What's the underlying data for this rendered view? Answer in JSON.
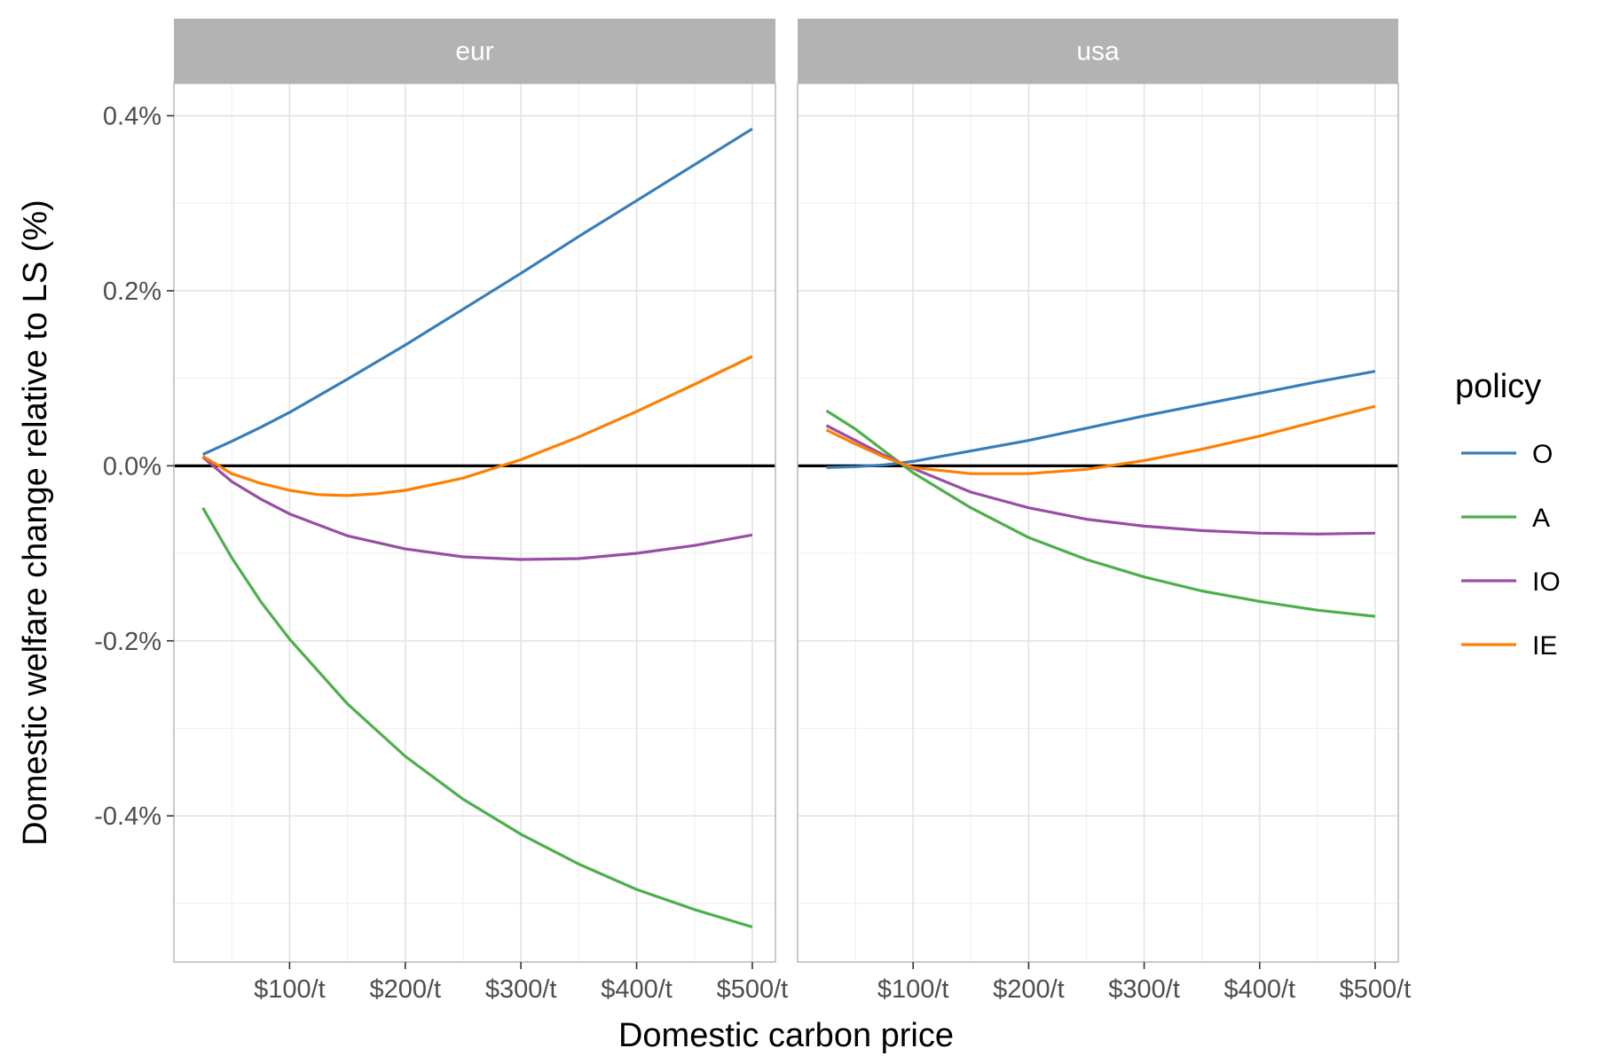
{
  "chart_data": {
    "type": "line",
    "xlabel": "Domestic carbon price",
    "ylabel": "Domestic welfare change relative to LS (%)",
    "x_ticks": [
      {
        "value": 100,
        "label": "$100/t"
      },
      {
        "value": 200,
        "label": "$200/t"
      },
      {
        "value": 300,
        "label": "$300/t"
      },
      {
        "value": 400,
        "label": "$400/t"
      },
      {
        "value": 500,
        "label": "$500/t"
      }
    ],
    "y_ticks": [
      {
        "value": 0.4,
        "label": "0.4%"
      },
      {
        "value": 0.2,
        "label": "0.2%"
      },
      {
        "value": 0.0,
        "label": "0.0%"
      },
      {
        "value": -0.2,
        "label": "-0.2%"
      },
      {
        "value": -0.4,
        "label": "-0.4%"
      }
    ],
    "xlim": [
      0,
      520
    ],
    "ylim": [
      -0.567,
      0.437
    ],
    "grid": true,
    "reference_line_y": 0,
    "legend": {
      "title": "policy",
      "placement": "right",
      "entries": [
        {
          "name": "O",
          "color": "#377EB8"
        },
        {
          "name": "A",
          "color": "#4DAF4A"
        },
        {
          "name": "IO",
          "color": "#984EA3"
        },
        {
          "name": "IE",
          "color": "#FF7F00"
        }
      ]
    },
    "panels": [
      {
        "strip_label": "eur",
        "series": [
          {
            "name": "O",
            "color": "#377EB8",
            "x": [
              25,
              50,
              75,
              100,
              150,
              200,
              250,
              300,
              350,
              400,
              450,
              500
            ],
            "y": [
              0.013,
              0.028,
              0.044,
              0.061,
              0.099,
              0.138,
              0.179,
              0.22,
              0.262,
              0.303,
              0.344,
              0.385
            ]
          },
          {
            "name": "A",
            "color": "#4DAF4A",
            "x": [
              25,
              50,
              75,
              100,
              150,
              200,
              250,
              300,
              350,
              400,
              450,
              500
            ],
            "y": [
              -0.048,
              -0.105,
              -0.155,
              -0.198,
              -0.272,
              -0.332,
              -0.381,
              -0.421,
              -0.455,
              -0.484,
              -0.507,
              -0.527
            ]
          },
          {
            "name": "IO",
            "color": "#984EA3",
            "x": [
              25,
              50,
              75,
              100,
              150,
              200,
              250,
              300,
              350,
              400,
              450,
              500
            ],
            "y": [
              0.01,
              -0.018,
              -0.038,
              -0.055,
              -0.08,
              -0.095,
              -0.104,
              -0.107,
              -0.106,
              -0.1,
              -0.091,
              -0.079
            ]
          },
          {
            "name": "IE",
            "color": "#FF7F00",
            "x": [
              25,
              50,
              75,
              100,
              125,
              150,
              175,
              200,
              250,
              300,
              350,
              400,
              450,
              500
            ],
            "y": [
              0.011,
              -0.009,
              -0.02,
              -0.028,
              -0.033,
              -0.034,
              -0.032,
              -0.028,
              -0.014,
              0.007,
              0.033,
              0.062,
              0.093,
              0.125
            ]
          }
        ]
      },
      {
        "strip_label": "usa",
        "series": [
          {
            "name": "O",
            "color": "#377EB8",
            "x": [
              25,
              50,
              75,
              100,
              150,
              200,
              250,
              300,
              350,
              400,
              450,
              500
            ],
            "y": [
              -0.002,
              -0.001,
              0.001,
              0.005,
              0.017,
              0.029,
              0.043,
              0.057,
              0.07,
              0.083,
              0.096,
              0.108
            ]
          },
          {
            "name": "A",
            "color": "#4DAF4A",
            "x": [
              25,
              50,
              75,
              100,
              150,
              200,
              250,
              300,
              350,
              400,
              450,
              500
            ],
            "y": [
              0.063,
              0.042,
              0.017,
              -0.008,
              -0.048,
              -0.082,
              -0.107,
              -0.127,
              -0.143,
              -0.155,
              -0.165,
              -0.172
            ]
          },
          {
            "name": "IO",
            "color": "#984EA3",
            "x": [
              25,
              50,
              75,
              100,
              150,
              200,
              250,
              300,
              350,
              400,
              450,
              500
            ],
            "y": [
              0.046,
              0.029,
              0.012,
              -0.003,
              -0.03,
              -0.048,
              -0.061,
              -0.069,
              -0.074,
              -0.077,
              -0.078,
              -0.077
            ]
          },
          {
            "name": "IE",
            "color": "#FF7F00",
            "x": [
              25,
              50,
              75,
              100,
              150,
              200,
              250,
              300,
              350,
              400,
              450,
              500
            ],
            "y": [
              0.041,
              0.025,
              0.01,
              -0.002,
              -0.009,
              -0.009,
              -0.004,
              0.006,
              0.019,
              0.034,
              0.051,
              0.068
            ]
          }
        ]
      }
    ]
  }
}
